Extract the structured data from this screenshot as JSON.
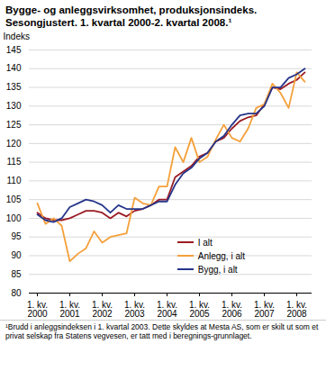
{
  "chart_data": {
    "type": "line",
    "title": "Bygge- og anleggsvirksomhet, produksjonsindeks. Sesongjustert. 1. kvartal 2000-2. kvartal 2008.¹",
    "ylabel": "Indeks",
    "caption": "¹Brudd i anleggsindeksen i 1. kvartal 2003. Dette skyldes at Mesta AS, som er skilt ut som et privat selskap fra Statens vegvesen, er tatt med i beregnings-grunnlaget.",
    "categories": [
      "1. kv.\n2000",
      null,
      null,
      null,
      "1. kv.\n2001",
      null,
      null,
      null,
      "1. kv.\n2002",
      null,
      null,
      null,
      "1. kv.\n2003",
      null,
      null,
      null,
      "1. kv.\n2004",
      null,
      null,
      null,
      "1. kv.\n2005",
      null,
      null,
      null,
      "1. kv.\n2006",
      null,
      null,
      null,
      "1. kv.\n2007",
      null,
      null,
      null,
      "1. kv.\n2008",
      null
    ],
    "series": [
      {
        "name": "I alt",
        "color": "#9b1c24",
        "values": [
          101.5,
          100,
          99.5,
          99.5,
          100,
          101,
          102,
          102,
          101.5,
          100,
          101.5,
          100.5,
          102,
          102.5,
          103.5,
          105,
          105,
          111,
          112.5,
          114,
          116.5,
          117.5,
          120.5,
          121.5,
          124,
          126,
          127,
          127.5,
          130.5,
          135,
          134.5,
          136,
          137,
          139
        ]
      },
      {
        "name": "Anlegg, i alt",
        "color": "#f5a03a",
        "values": [
          104,
          98.5,
          100,
          98,
          88.5,
          90.5,
          92,
          96.5,
          93.5,
          95,
          95.5,
          96,
          105.5,
          104,
          103.5,
          108.5,
          108.5,
          119,
          115,
          121.5,
          115,
          116.5,
          121,
          125,
          121.5,
          120.5,
          124,
          129.5,
          130.5,
          136,
          133.5,
          129.5,
          139,
          136.5
        ]
      },
      {
        "name": "Bygg, i alt",
        "color": "#26358a",
        "values": [
          101,
          99.5,
          99,
          100,
          103,
          104,
          105,
          104.5,
          103.5,
          101.5,
          103.5,
          102.5,
          102.5,
          102.5,
          103.5,
          104.5,
          104.5,
          109,
          112,
          113.5,
          116,
          117.5,
          120.5,
          122,
          125,
          127.5,
          128,
          128,
          130,
          135,
          135,
          137.5,
          138.5,
          140
        ]
      }
    ],
    "ylim": [
      80,
      145
    ],
    "yticks": [
      80,
      85,
      90,
      95,
      100,
      105,
      110,
      115,
      120,
      125,
      130,
      135,
      140,
      145
    ],
    "grid": true,
    "legend": "bottom-right"
  }
}
